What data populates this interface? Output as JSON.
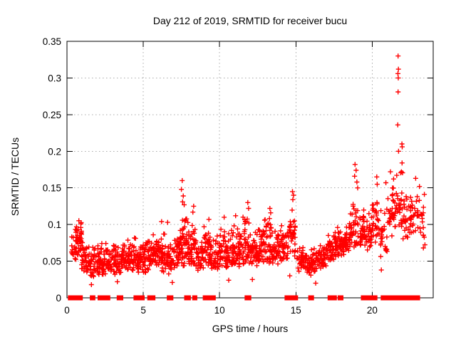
{
  "chart_data": {
    "type": "scatter",
    "title": "Day 212 of 2019, SRMTID for receiver bucu",
    "xlabel": "GPS time / hours",
    "ylabel": "SRMTID / TECUs",
    "series_name": "SRMTID",
    "xlim": [
      0,
      24
    ],
    "ylim": [
      0,
      0.35
    ],
    "xticks": [
      0,
      5,
      10,
      15,
      20
    ],
    "yticks": [
      0,
      0.05,
      0.1,
      0.15,
      0.2,
      0.25,
      0.3,
      0.35
    ],
    "grid": true,
    "legend": "none",
    "marker": "plus",
    "marker_color": "#ff0000",
    "seed": 20190212,
    "point_clusters": [
      [
        0.3,
        0.55,
        14,
        0.05,
        0.09
      ],
      [
        0.55,
        0.95,
        48,
        0.052,
        0.112
      ],
      [
        0.95,
        1.3,
        30,
        0.032,
        0.078
      ],
      [
        1.3,
        1.75,
        32,
        0.027,
        0.072
      ],
      [
        1.75,
        2.2,
        34,
        0.03,
        0.075
      ],
      [
        2.2,
        2.65,
        36,
        0.03,
        0.08
      ],
      [
        2.65,
        3.1,
        34,
        0.03,
        0.076
      ],
      [
        3.1,
        3.55,
        34,
        0.03,
        0.078
      ],
      [
        3.55,
        4.0,
        36,
        0.032,
        0.082
      ],
      [
        4.0,
        4.5,
        40,
        0.034,
        0.085
      ],
      [
        4.5,
        5.0,
        42,
        0.03,
        0.082
      ],
      [
        5.0,
        5.5,
        40,
        0.034,
        0.082
      ],
      [
        5.5,
        6.0,
        40,
        0.036,
        0.09
      ],
      [
        6.0,
        6.5,
        40,
        0.034,
        0.095
      ],
      [
        6.5,
        7.0,
        36,
        0.03,
        0.082
      ],
      [
        7.0,
        7.45,
        40,
        0.035,
        0.1
      ],
      [
        7.45,
        7.95,
        44,
        0.04,
        0.125
      ],
      [
        7.95,
        8.45,
        40,
        0.04,
        0.112
      ],
      [
        8.45,
        8.95,
        36,
        0.035,
        0.09
      ],
      [
        8.95,
        9.45,
        40,
        0.04,
        0.102
      ],
      [
        9.45,
        9.95,
        36,
        0.035,
        0.09
      ],
      [
        9.95,
        10.45,
        40,
        0.04,
        0.1
      ],
      [
        10.45,
        10.95,
        40,
        0.04,
        0.1
      ],
      [
        10.95,
        11.45,
        40,
        0.042,
        0.105
      ],
      [
        11.45,
        11.95,
        40,
        0.04,
        0.115
      ],
      [
        11.95,
        12.45,
        40,
        0.04,
        0.09
      ],
      [
        12.45,
        12.95,
        40,
        0.045,
        0.1
      ],
      [
        12.95,
        13.45,
        40,
        0.045,
        0.115
      ],
      [
        13.45,
        13.95,
        36,
        0.04,
        0.1
      ],
      [
        13.95,
        14.45,
        36,
        0.045,
        0.108
      ],
      [
        14.45,
        14.98,
        38,
        0.05,
        0.13
      ],
      [
        15.05,
        15.5,
        30,
        0.035,
        0.075
      ],
      [
        15.5,
        16.0,
        34,
        0.03,
        0.07
      ],
      [
        16.0,
        16.5,
        34,
        0.035,
        0.075
      ],
      [
        16.5,
        17.0,
        36,
        0.04,
        0.08
      ],
      [
        17.0,
        17.5,
        38,
        0.045,
        0.09
      ],
      [
        17.5,
        18.0,
        40,
        0.05,
        0.1
      ],
      [
        18.0,
        18.5,
        40,
        0.055,
        0.112
      ],
      [
        18.5,
        19.0,
        40,
        0.06,
        0.148
      ],
      [
        19.0,
        19.5,
        36,
        0.065,
        0.132
      ],
      [
        19.5,
        20.0,
        30,
        0.06,
        0.122
      ],
      [
        20.0,
        20.5,
        32,
        0.07,
        0.142
      ],
      [
        20.5,
        21.0,
        26,
        0.055,
        0.13
      ],
      [
        21.0,
        21.5,
        30,
        0.08,
        0.168
      ],
      [
        21.5,
        22.0,
        28,
        0.09,
        0.175
      ],
      [
        22.0,
        22.5,
        26,
        0.075,
        0.15
      ],
      [
        22.5,
        23.0,
        28,
        0.085,
        0.158
      ],
      [
        23.0,
        23.5,
        20,
        0.065,
        0.148
      ]
    ],
    "outlier_points": [
      [
        7.55,
        0.16
      ],
      [
        7.5,
        0.148
      ],
      [
        7.62,
        0.139
      ],
      [
        7.58,
        0.131
      ],
      [
        7.68,
        0.127
      ],
      [
        8.3,
        0.125
      ],
      [
        8.25,
        0.117
      ],
      [
        9.3,
        0.107
      ],
      [
        6.2,
        0.104
      ],
      [
        6.6,
        0.103
      ],
      [
        10.3,
        0.11
      ],
      [
        11.05,
        0.112
      ],
      [
        11.85,
        0.13
      ],
      [
        11.9,
        0.122
      ],
      [
        13.3,
        0.122
      ],
      [
        13.35,
        0.116
      ],
      [
        14.78,
        0.145
      ],
      [
        14.85,
        0.14
      ],
      [
        14.8,
        0.134
      ],
      [
        18.88,
        0.182
      ],
      [
        18.95,
        0.174
      ],
      [
        18.85,
        0.166
      ],
      [
        19.0,
        0.158
      ],
      [
        19.05,
        0.15
      ],
      [
        20.3,
        0.165
      ],
      [
        20.33,
        0.155
      ],
      [
        20.9,
        0.157
      ],
      [
        21.2,
        0.172
      ],
      [
        21.7,
        0.33
      ],
      [
        21.72,
        0.312
      ],
      [
        21.69,
        0.306
      ],
      [
        21.71,
        0.3
      ],
      [
        21.7,
        0.281
      ],
      [
        21.68,
        0.236
      ],
      [
        21.95,
        0.21
      ],
      [
        21.97,
        0.206
      ],
      [
        21.73,
        0.2
      ],
      [
        21.96,
        0.184
      ],
      [
        22.85,
        0.163
      ],
      [
        23.1,
        0.152
      ],
      [
        1.6,
        0.018
      ],
      [
        6.9,
        0.021
      ],
      [
        10.6,
        0.024
      ],
      [
        16.3,
        0.02
      ],
      [
        20.6,
        0.038
      ],
      [
        3.3,
        0.022
      ],
      [
        12.15,
        0.025
      ],
      [
        14.6,
        0.03
      ]
    ],
    "zero_value_runs": [
      [
        0.2,
        0.43
      ],
      [
        0.48,
        0.59
      ],
      [
        0.67,
        0.9
      ],
      [
        1.64,
        1.72
      ],
      [
        2.15,
        2.3
      ],
      [
        2.4,
        2.7
      ],
      [
        3.4,
        3.55
      ],
      [
        4.5,
        4.95
      ],
      [
        5.4,
        5.65
      ],
      [
        6.68,
        6.73
      ],
      [
        6.78,
        6.83
      ],
      [
        7.82,
        7.87
      ],
      [
        7.93,
        7.98
      ],
      [
        8.35,
        8.4
      ],
      [
        9.04,
        9.09
      ],
      [
        9.18,
        9.23
      ],
      [
        9.42,
        9.47
      ],
      [
        9.56,
        9.61
      ],
      [
        11.78,
        11.94
      ],
      [
        14.4,
        14.6
      ],
      [
        14.72,
        15.0
      ],
      [
        15.95,
        16.05
      ],
      [
        17.22,
        17.32
      ],
      [
        17.45,
        17.55
      ],
      [
        17.88,
        17.98
      ],
      [
        19.4,
        19.65
      ],
      [
        19.7,
        19.9
      ],
      [
        19.95,
        20.2
      ],
      [
        20.7,
        20.9
      ],
      [
        21.0,
        21.06
      ],
      [
        21.14,
        21.2
      ],
      [
        21.3,
        21.75
      ],
      [
        21.9,
        22.1
      ],
      [
        22.35,
        22.55
      ],
      [
        22.7,
        23.0
      ]
    ]
  },
  "colors": {
    "marker": "#ff0000",
    "grid": "#aaaaaa",
    "axis": "#000000",
    "text": "#000000",
    "background": "#ffffff"
  }
}
